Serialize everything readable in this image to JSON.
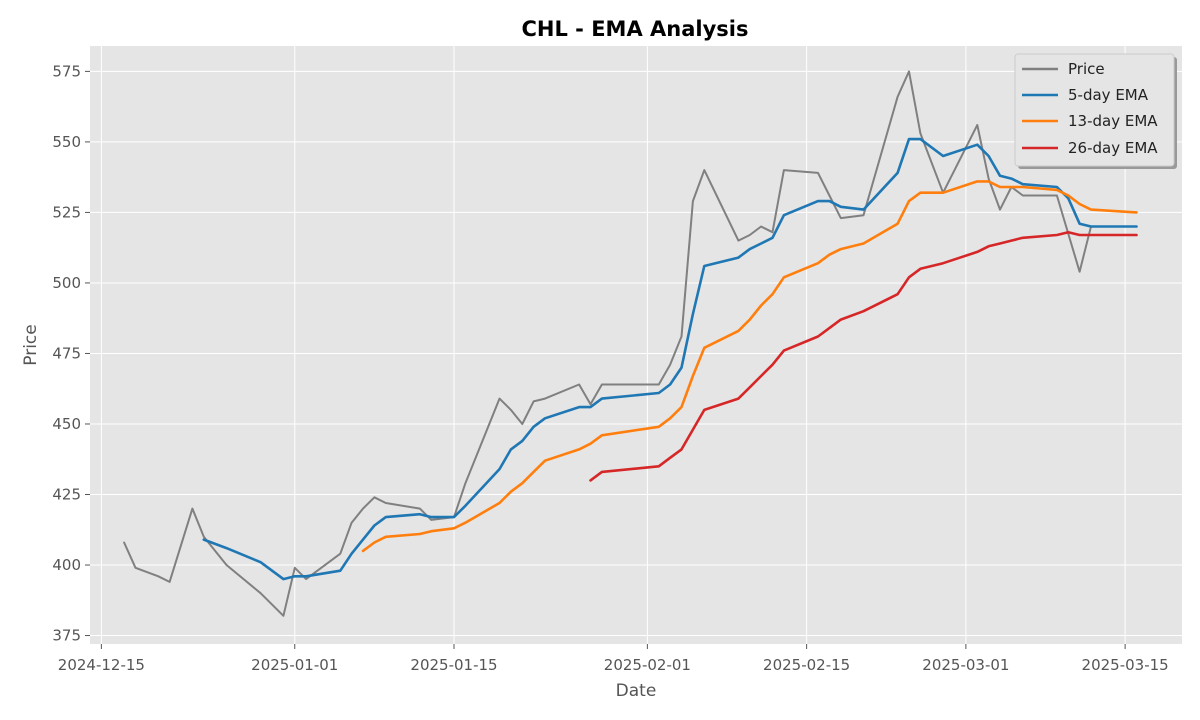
{
  "chart_data": {
    "type": "line",
    "title": "CHL - EMA Analysis",
    "xlabel": "Date",
    "ylabel": "Price",
    "x_axis": {
      "start": "2024-12-14",
      "end": "2025-03-20",
      "ticks": [
        "2024-12-15",
        "2025-01-01",
        "2025-01-15",
        "2025-02-01",
        "2025-02-15",
        "2025-03-01",
        "2025-03-15"
      ]
    },
    "y_axis": {
      "min": 372,
      "max": 584,
      "ticks": [
        375,
        400,
        425,
        450,
        475,
        500,
        525,
        550,
        575
      ]
    },
    "grid": true,
    "legend": "top-right",
    "series": [
      {
        "name": "Price",
        "color": "#808080",
        "points": [
          [
            "2024-12-17",
            408
          ],
          [
            "2024-12-18",
            399
          ],
          [
            "2024-12-20",
            396
          ],
          [
            "2024-12-21",
            394
          ],
          [
            "2024-12-23",
            420
          ],
          [
            "2024-12-24",
            410
          ],
          [
            "2024-12-26",
            400
          ],
          [
            "2024-12-29",
            390
          ],
          [
            "2024-12-31",
            382
          ],
          [
            "2025-01-01",
            399
          ],
          [
            "2025-01-02",
            395
          ],
          [
            "2025-01-05",
            404
          ],
          [
            "2025-01-06",
            415
          ],
          [
            "2025-01-07",
            420
          ],
          [
            "2025-01-08",
            424
          ],
          [
            "2025-01-09",
            422
          ],
          [
            "2025-01-12",
            420
          ],
          [
            "2025-01-13",
            416
          ],
          [
            "2025-01-15",
            417
          ],
          [
            "2025-01-16",
            429
          ],
          [
            "2025-01-19",
            459
          ],
          [
            "2025-01-20",
            455
          ],
          [
            "2025-01-21",
            450
          ],
          [
            "2025-01-22",
            458
          ],
          [
            "2025-01-23",
            459
          ],
          [
            "2025-01-26",
            464
          ],
          [
            "2025-01-27",
            457
          ],
          [
            "2025-01-28",
            464
          ],
          [
            "2025-02-02",
            464
          ],
          [
            "2025-02-03",
            471
          ],
          [
            "2025-02-04",
            481
          ],
          [
            "2025-02-05",
            529
          ],
          [
            "2025-02-06",
            540
          ],
          [
            "2025-02-09",
            515
          ],
          [
            "2025-02-10",
            517
          ],
          [
            "2025-02-11",
            520
          ],
          [
            "2025-02-12",
            518
          ],
          [
            "2025-02-13",
            540
          ],
          [
            "2025-02-16",
            539
          ],
          [
            "2025-02-17",
            531
          ],
          [
            "2025-02-18",
            523
          ],
          [
            "2025-02-20",
            524
          ],
          [
            "2025-02-23",
            566
          ],
          [
            "2025-02-24",
            575
          ],
          [
            "2025-02-25",
            553
          ],
          [
            "2025-02-27",
            532
          ],
          [
            "2025-03-02",
            556
          ],
          [
            "2025-03-03",
            537
          ],
          [
            "2025-03-04",
            526
          ],
          [
            "2025-03-05",
            534
          ],
          [
            "2025-03-06",
            531
          ],
          [
            "2025-03-09",
            531
          ],
          [
            "2025-03-11",
            504
          ],
          [
            "2025-03-12",
            520
          ],
          [
            "2025-03-16",
            520
          ]
        ]
      },
      {
        "name": "5-day EMA",
        "color": "#1f77b4",
        "points": [
          [
            "2024-12-24",
            409
          ],
          [
            "2024-12-26",
            406
          ],
          [
            "2024-12-29",
            401
          ],
          [
            "2024-12-31",
            395
          ],
          [
            "2025-01-01",
            396
          ],
          [
            "2025-01-02",
            396
          ],
          [
            "2025-01-05",
            398
          ],
          [
            "2025-01-06",
            404
          ],
          [
            "2025-01-07",
            409
          ],
          [
            "2025-01-08",
            414
          ],
          [
            "2025-01-09",
            417
          ],
          [
            "2025-01-12",
            418
          ],
          [
            "2025-01-13",
            417
          ],
          [
            "2025-01-15",
            417
          ],
          [
            "2025-01-16",
            421
          ],
          [
            "2025-01-19",
            434
          ],
          [
            "2025-01-20",
            441
          ],
          [
            "2025-01-21",
            444
          ],
          [
            "2025-01-22",
            449
          ],
          [
            "2025-01-23",
            452
          ],
          [
            "2025-01-26",
            456
          ],
          [
            "2025-01-27",
            456
          ],
          [
            "2025-01-28",
            459
          ],
          [
            "2025-02-02",
            461
          ],
          [
            "2025-02-03",
            464
          ],
          [
            "2025-02-04",
            470
          ],
          [
            "2025-02-05",
            489
          ],
          [
            "2025-02-06",
            506
          ],
          [
            "2025-02-09",
            509
          ],
          [
            "2025-02-10",
            512
          ],
          [
            "2025-02-11",
            514
          ],
          [
            "2025-02-12",
            516
          ],
          [
            "2025-02-13",
            524
          ],
          [
            "2025-02-16",
            529
          ],
          [
            "2025-02-17",
            529
          ],
          [
            "2025-02-18",
            527
          ],
          [
            "2025-02-20",
            526
          ],
          [
            "2025-02-23",
            539
          ],
          [
            "2025-02-24",
            551
          ],
          [
            "2025-02-25",
            551
          ],
          [
            "2025-02-27",
            545
          ],
          [
            "2025-03-02",
            549
          ],
          [
            "2025-03-03",
            545
          ],
          [
            "2025-03-04",
            538
          ],
          [
            "2025-03-05",
            537
          ],
          [
            "2025-03-06",
            535
          ],
          [
            "2025-03-09",
            534
          ],
          [
            "2025-03-10",
            530
          ],
          [
            "2025-03-11",
            521
          ],
          [
            "2025-03-12",
            520
          ],
          [
            "2025-03-16",
            520
          ]
        ]
      },
      {
        "name": "13-day EMA",
        "color": "#ff7f0e",
        "points": [
          [
            "2025-01-07",
            405
          ],
          [
            "2025-01-08",
            408
          ],
          [
            "2025-01-09",
            410
          ],
          [
            "2025-01-12",
            411
          ],
          [
            "2025-01-13",
            412
          ],
          [
            "2025-01-15",
            413
          ],
          [
            "2025-01-16",
            415
          ],
          [
            "2025-01-19",
            422
          ],
          [
            "2025-01-20",
            426
          ],
          [
            "2025-01-21",
            429
          ],
          [
            "2025-01-22",
            433
          ],
          [
            "2025-01-23",
            437
          ],
          [
            "2025-01-26",
            441
          ],
          [
            "2025-01-27",
            443
          ],
          [
            "2025-01-28",
            446
          ],
          [
            "2025-02-02",
            449
          ],
          [
            "2025-02-03",
            452
          ],
          [
            "2025-02-04",
            456
          ],
          [
            "2025-02-05",
            467
          ],
          [
            "2025-02-06",
            477
          ],
          [
            "2025-02-09",
            483
          ],
          [
            "2025-02-10",
            487
          ],
          [
            "2025-02-11",
            492
          ],
          [
            "2025-02-12",
            496
          ],
          [
            "2025-02-13",
            502
          ],
          [
            "2025-02-16",
            507
          ],
          [
            "2025-02-17",
            510
          ],
          [
            "2025-02-18",
            512
          ],
          [
            "2025-02-20",
            514
          ],
          [
            "2025-02-23",
            521
          ],
          [
            "2025-02-24",
            529
          ],
          [
            "2025-02-25",
            532
          ],
          [
            "2025-02-27",
            532
          ],
          [
            "2025-03-02",
            536
          ],
          [
            "2025-03-03",
            536
          ],
          [
            "2025-03-04",
            534
          ],
          [
            "2025-03-05",
            534
          ],
          [
            "2025-03-06",
            534
          ],
          [
            "2025-03-09",
            533
          ],
          [
            "2025-03-10",
            531
          ],
          [
            "2025-03-11",
            528
          ],
          [
            "2025-03-12",
            526
          ],
          [
            "2025-03-16",
            525
          ]
        ]
      },
      {
        "name": "26-day EMA",
        "color": "#d62728",
        "points": [
          [
            "2025-01-27",
            430
          ],
          [
            "2025-01-28",
            433
          ],
          [
            "2025-02-02",
            435
          ],
          [
            "2025-02-03",
            438
          ],
          [
            "2025-02-04",
            441
          ],
          [
            "2025-02-05",
            448
          ],
          [
            "2025-02-06",
            455
          ],
          [
            "2025-02-09",
            459
          ],
          [
            "2025-02-10",
            463
          ],
          [
            "2025-02-11",
            467
          ],
          [
            "2025-02-12",
            471
          ],
          [
            "2025-02-13",
            476
          ],
          [
            "2025-02-16",
            481
          ],
          [
            "2025-02-17",
            484
          ],
          [
            "2025-02-18",
            487
          ],
          [
            "2025-02-20",
            490
          ],
          [
            "2025-02-23",
            496
          ],
          [
            "2025-02-24",
            502
          ],
          [
            "2025-02-25",
            505
          ],
          [
            "2025-02-27",
            507
          ],
          [
            "2025-03-02",
            511
          ],
          [
            "2025-03-03",
            513
          ],
          [
            "2025-03-04",
            514
          ],
          [
            "2025-03-05",
            515
          ],
          [
            "2025-03-06",
            516
          ],
          [
            "2025-03-09",
            517
          ],
          [
            "2025-03-10",
            518
          ],
          [
            "2025-03-11",
            517
          ],
          [
            "2025-03-12",
            517
          ],
          [
            "2025-03-16",
            517
          ]
        ]
      }
    ]
  }
}
